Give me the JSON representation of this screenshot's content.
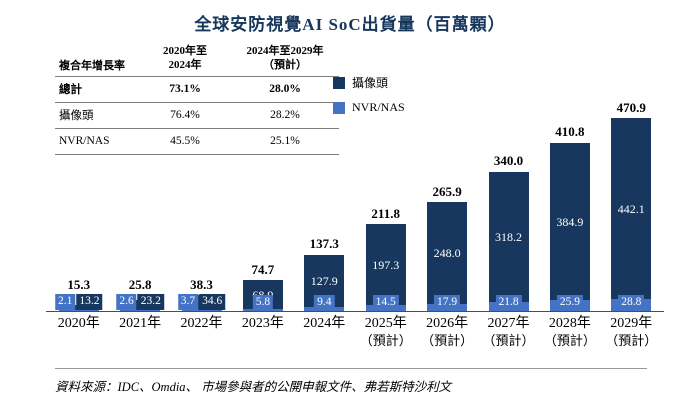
{
  "title": "全球安防視覺AI SoC出貨量（百萬顆）",
  "table": {
    "corner_label": "複合年增長率",
    "col1": {
      "l1": "2020年至",
      "l2": "2024年"
    },
    "col2": {
      "l1": "2024年至2029年",
      "l2": "（預計）"
    },
    "rows": [
      {
        "label": "總計",
        "v1": "73.1%",
        "v2": "28.0%"
      },
      {
        "label": "攝像頭",
        "v1": "76.4%",
        "v2": "28.2%"
      },
      {
        "label": "NVR/NAS",
        "v1": "45.5%",
        "v2": "25.1%"
      }
    ]
  },
  "legend": [
    {
      "label": "攝像頭",
      "color": "#17375E"
    },
    {
      "label": "NVR/NAS",
      "color": "#4472C4"
    }
  ],
  "chart_data": {
    "type": "bar",
    "stacked": true,
    "title": "全球安防視覺AI SoC出貨量（百萬顆）",
    "xlabel": "",
    "ylabel": "出貨量（百萬顆）",
    "legend_position": "top-center",
    "grid": false,
    "categories": [
      {
        "year": "2020年",
        "note": ""
      },
      {
        "year": "2021年",
        "note": ""
      },
      {
        "year": "2022年",
        "note": ""
      },
      {
        "year": "2023年",
        "note": ""
      },
      {
        "year": "2024年",
        "note": ""
      },
      {
        "year": "2025年",
        "note": "（預計）"
      },
      {
        "year": "2026年",
        "note": "（預計）"
      },
      {
        "year": "2027年",
        "note": "（預計）"
      },
      {
        "year": "2028年",
        "note": "（預計）"
      },
      {
        "year": "2029年",
        "note": "（預計）"
      }
    ],
    "series": [
      {
        "name": "攝像頭",
        "color": "#17375E",
        "values": [
          13.2,
          23.2,
          34.6,
          68.9,
          127.9,
          197.3,
          248.0,
          318.2,
          384.9,
          442.1
        ]
      },
      {
        "name": "NVR/NAS",
        "color": "#4472C4",
        "values": [
          2.1,
          2.6,
          3.7,
          5.8,
          9.4,
          14.5,
          17.9,
          21.8,
          25.9,
          28.8
        ]
      }
    ],
    "totals": [
      15.3,
      25.8,
      38.3,
      74.7,
      137.3,
      211.8,
      265.9,
      340.0,
      410.8,
      470.9
    ],
    "ylim": [
      0,
      500
    ]
  },
  "source": "資料來源：IDC、Omdia、 市場參與者的公開申報文件、弗若斯特沙利文"
}
